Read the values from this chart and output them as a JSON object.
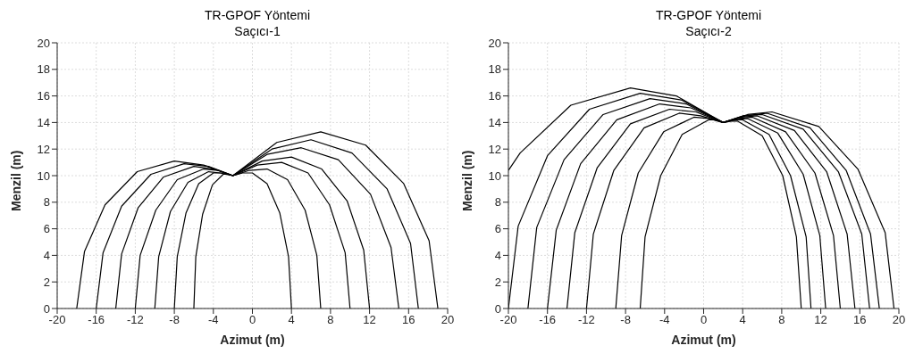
{
  "chart_data": [
    {
      "type": "line",
      "title": "TR-GPOF Yöntemi",
      "subtitle": "Saçıcı-1",
      "xlabel": "Azimut (m)",
      "ylabel": "Menzil (m)",
      "xlim": [
        -20,
        20
      ],
      "xticks": [
        -20,
        -16,
        -12,
        -8,
        -4,
        0,
        4,
        8,
        12,
        16,
        20
      ],
      "ylim": [
        0,
        20
      ],
      "yticks": [
        0,
        2,
        4,
        6,
        8,
        10,
        12,
        14,
        16,
        18,
        20
      ],
      "grid": true,
      "series": [
        {
          "color": "#000000",
          "x": [
            -18,
            -17.2,
            -15.1,
            -11.8,
            -8,
            -5,
            -2,
            2.5,
            7,
            11.6,
            15.5,
            18.1,
            19
          ],
          "values": [
            0,
            4.3,
            7.8,
            10.3,
            11.1,
            10.8,
            10,
            12.5,
            13.3,
            12.3,
            9.4,
            5.1,
            0
          ]
        },
        {
          "color": "#000000",
          "x": [
            -16,
            -15.3,
            -13.4,
            -10.4,
            -7,
            -4.5,
            -2,
            2,
            6,
            10.2,
            13.8,
            16.2,
            17
          ],
          "values": [
            0,
            4.2,
            7.7,
            10.1,
            10.9,
            10.7,
            10,
            12,
            12.7,
            11.7,
            9,
            4.9,
            0
          ]
        },
        {
          "color": "#000000",
          "x": [
            -14,
            -13.4,
            -11.7,
            -9.1,
            -6,
            -4,
            -2,
            1.5,
            5,
            8.8,
            12.1,
            14.2,
            15
          ],
          "values": [
            0,
            4.1,
            7.6,
            9.9,
            10.7,
            10.5,
            10,
            11.6,
            12.1,
            11.2,
            8.6,
            4.6,
            0
          ]
        },
        {
          "color": "#000000",
          "x": [
            -12,
            -11.5,
            -9.9,
            -7.7,
            -5,
            -3.5,
            -2,
            1,
            4,
            7.1,
            9.7,
            11.4,
            12
          ],
          "values": [
            0,
            4,
            7.4,
            9.7,
            10.5,
            10.4,
            10,
            11.1,
            11.4,
            10.5,
            8.1,
            4.4,
            0
          ]
        },
        {
          "color": "#000000",
          "x": [
            -10,
            -9.6,
            -8.4,
            -6.6,
            -4.5,
            -3.3,
            -2,
            0.5,
            3,
            5.7,
            7.9,
            9.5,
            10
          ],
          "values": [
            0,
            3.9,
            7.3,
            9.5,
            10.3,
            10.2,
            10,
            10.8,
            11,
            10.2,
            7.8,
            4.2,
            0
          ]
        },
        {
          "color": "#000000",
          "x": [
            -8,
            -7.7,
            -6.8,
            -5.5,
            -4,
            -3,
            -2,
            -0.3,
            1.5,
            3.6,
            5.4,
            6.6,
            7
          ],
          "values": [
            0,
            3.9,
            7.2,
            9.4,
            10.2,
            10.2,
            10,
            10.4,
            10.5,
            9.7,
            7.4,
            4,
            0
          ]
        },
        {
          "color": "#000000",
          "x": [
            -6,
            -5.8,
            -5.1,
            -4.1,
            -3,
            -2.5,
            -2,
            -1,
            0,
            1.5,
            2.8,
            3.7,
            4
          ],
          "values": [
            0,
            3.9,
            7.1,
            9.3,
            10.1,
            10.1,
            10,
            10.2,
            10.2,
            9.4,
            7.2,
            3.9,
            0
          ]
        }
      ]
    },
    {
      "type": "line",
      "title": "TR-GPOF Yöntemi",
      "subtitle": "Saçıcı-2",
      "xlabel": "Azimut (m)",
      "ylabel": "Menzil (m)",
      "xlim": [
        -20,
        20
      ],
      "xticks": [
        -20,
        -16,
        -12,
        -8,
        -4,
        0,
        4,
        8,
        12,
        16,
        20
      ],
      "ylim": [
        0,
        20
      ],
      "yticks": [
        0,
        2,
        4,
        6,
        8,
        10,
        12,
        14,
        16,
        18,
        20
      ],
      "grid": true,
      "series": [
        {
          "color": "#000000",
          "x": [
            -20,
            -18.8,
            -13.6,
            -7.5,
            -2.8,
            2,
            4.5,
            7,
            11.8,
            15.8,
            18.6,
            19.5
          ],
          "values": [
            10.4,
            11.7,
            15.3,
            16.6,
            16,
            14,
            14.6,
            14.8,
            13.7,
            10.5,
            5.7,
            0
          ]
        },
        {
          "color": "#000000",
          "x": [
            -20,
            -19,
            -16,
            -11.7,
            -6.5,
            -2.3,
            2,
            4.3,
            6.5,
            10.9,
            14.6,
            17.1,
            18
          ],
          "values": [
            0,
            6.2,
            11.5,
            15,
            16.2,
            15.7,
            14,
            14.5,
            14.7,
            13.6,
            10.4,
            5.6,
            0
          ]
        },
        {
          "color": "#000000",
          "x": [
            -18,
            -17.1,
            -14.3,
            -10.3,
            -5.5,
            -1.8,
            2,
            4,
            6,
            10.2,
            13.8,
            16.2,
            17
          ],
          "values": [
            0,
            6.1,
            11.2,
            14.6,
            15.8,
            15.4,
            14,
            14.5,
            14.6,
            13.5,
            10.3,
            5.6,
            0
          ]
        },
        {
          "color": "#000000",
          "x": [
            -16,
            -15.1,
            -12.6,
            -8.9,
            -4.5,
            -1.3,
            2,
            3.8,
            5.5,
            9.3,
            12.6,
            14.7,
            15.5
          ],
          "values": [
            0,
            5.9,
            10.9,
            14.2,
            15.4,
            15.1,
            14,
            14.4,
            14.5,
            13.4,
            10.3,
            5.6,
            0
          ]
        },
        {
          "color": "#000000",
          "x": [
            -14,
            -13.2,
            -10.9,
            -7.5,
            -3.5,
            -0.8,
            2,
            3.5,
            5,
            8.4,
            11.4,
            13.3,
            14
          ],
          "values": [
            0,
            5.7,
            10.6,
            13.9,
            15,
            14.8,
            14,
            14.3,
            14.4,
            13.3,
            10.2,
            5.5,
            0
          ]
        },
        {
          "color": "#000000",
          "x": [
            -12,
            -11.3,
            -9.2,
            -6.1,
            -2.5,
            -0.3,
            2,
            3.3,
            4.5,
            7.6,
            10.2,
            11.9,
            12.5
          ],
          "values": [
            0,
            5.6,
            10.4,
            13.6,
            14.7,
            14.5,
            14,
            14.2,
            14.3,
            13.2,
            10.1,
            5.5,
            0
          ]
        },
        {
          "color": "#000000",
          "x": [
            -9,
            -8.4,
            -6.7,
            -4.1,
            -1,
            0.5,
            2,
            3,
            4,
            6.7,
            8.9,
            10.5,
            11
          ],
          "values": [
            0,
            5.5,
            10.2,
            13.3,
            14.4,
            14.3,
            14,
            14.2,
            14.2,
            13.1,
            10,
            5.4,
            0
          ]
        },
        {
          "color": "#000000",
          "x": [
            -6.5,
            -6,
            -4.4,
            -2.2,
            0.5,
            1.3,
            2,
            2.8,
            3.5,
            6,
            8.1,
            9.5,
            10
          ],
          "values": [
            0,
            5.4,
            10,
            13.1,
            14.2,
            14.2,
            14,
            14.1,
            14.1,
            13,
            10,
            5.4,
            0
          ]
        }
      ]
    }
  ]
}
